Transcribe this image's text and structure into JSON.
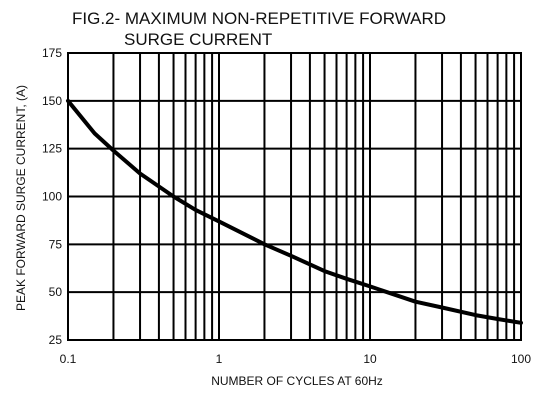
{
  "chart_data": {
    "type": "line",
    "title_lines": [
      "FIG.2- MAXIMUM NON-REPETITIVE FORWARD",
      "SURGE CURRENT"
    ],
    "xlabel": "NUMBER OF CYCLES AT 60Hz",
    "ylabel": "PEAK FORWARD SURGE CURRENT, (A)",
    "xscale": "log",
    "xlim": [
      0.1,
      100
    ],
    "ylim": [
      25,
      175
    ],
    "x_ticks": [
      "0.1",
      "1",
      "10",
      "100"
    ],
    "y_ticks": [
      "175",
      "150",
      "125",
      "100",
      "75",
      "50",
      "25"
    ],
    "grid": true,
    "series": [
      {
        "x": [
          0.1,
          0.15,
          0.2,
          0.3,
          0.5,
          0.7,
          1,
          2,
          3,
          5,
          7,
          10,
          20,
          30,
          50,
          70,
          100
        ],
        "y": [
          150,
          133,
          124,
          112,
          100,
          93,
          87,
          75,
          69,
          61,
          57,
          53,
          45,
          42,
          38,
          36,
          34
        ]
      }
    ]
  }
}
